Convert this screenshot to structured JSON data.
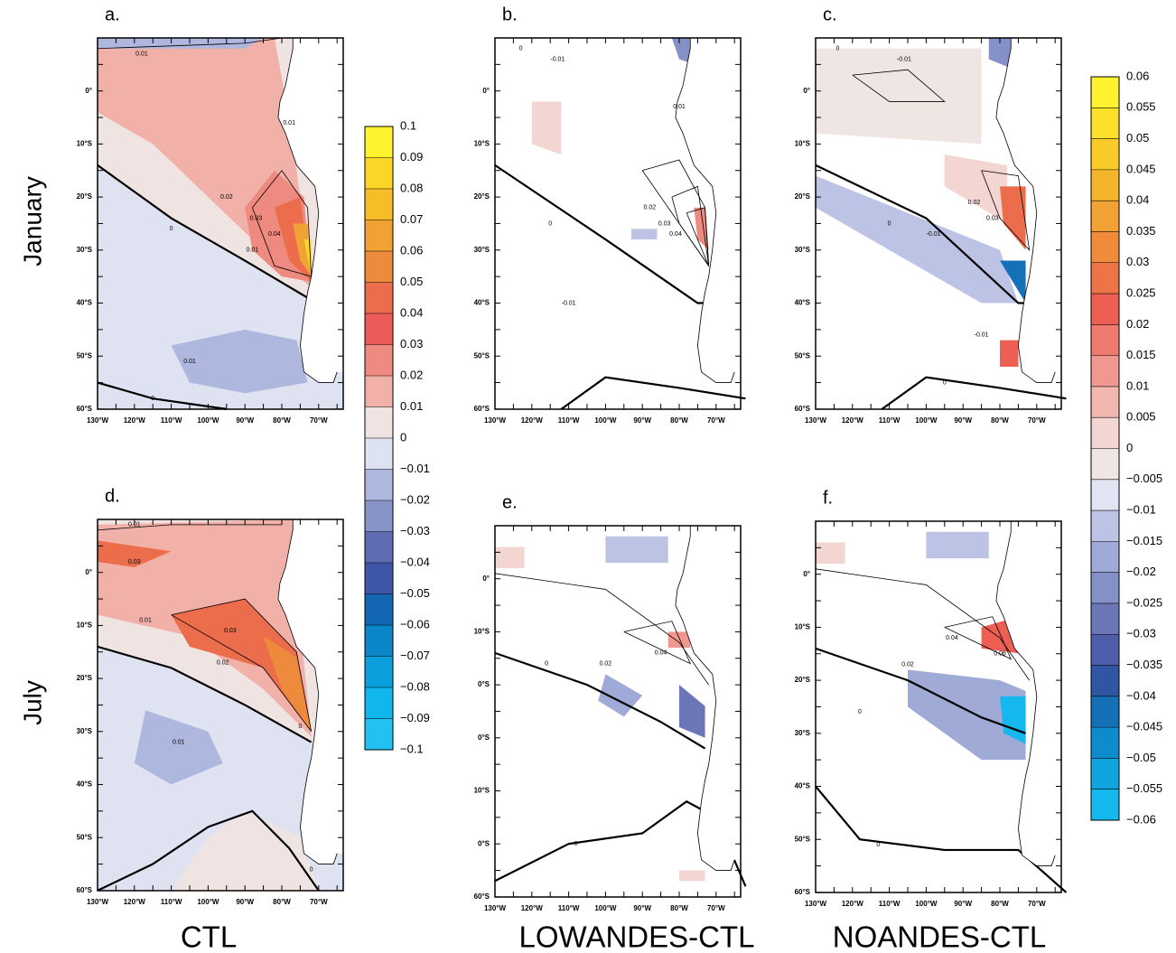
{
  "rows": [
    "January",
    "July"
  ],
  "columns": [
    "CTL",
    "LOWANDES-CTL",
    "NOANDES-CTL"
  ],
  "lon_ticks": [
    "130°W",
    "120°W",
    "110°W",
    "100°W",
    "90°W",
    "80°W",
    "70°W"
  ],
  "panels": [
    {
      "label": "a.",
      "lat_ticks": [
        "0°",
        "10°S",
        "20°S",
        "30°S",
        "40°S",
        "50°S",
        "60°S"
      ],
      "contours": [
        "0.01",
        "0.01",
        "0.02",
        "0.03",
        "0.04",
        "0",
        "0.01",
        "0.01",
        "0"
      ]
    },
    {
      "label": "b.",
      "lat_ticks": [
        "0°",
        "10°S",
        "20°S",
        "30°S",
        "40°S",
        "50°S",
        "60°S"
      ],
      "contours": [
        "0",
        "-0.01",
        "0.01",
        "0.02",
        "0.03",
        "0.04",
        "0",
        "-0.01"
      ]
    },
    {
      "label": "c.",
      "lat_ticks": [
        "0°",
        "10°S",
        "20°S",
        "30°S",
        "40°S",
        "50°S",
        "60°S"
      ],
      "contours": [
        "0",
        "-0.01",
        "0.02",
        "0.03",
        "0",
        "-0.01",
        "-0.01",
        "0"
      ]
    },
    {
      "label": "d.",
      "lat_ticks": [
        "0°",
        "10°S",
        "20°S",
        "30°S",
        "40°S",
        "50°S",
        "60°S"
      ],
      "contours": [
        "0.01",
        "0.03",
        "0.03",
        "0.01",
        "0.02",
        "0",
        "0.01",
        "0"
      ]
    },
    {
      "label": "e.",
      "lat_ticks": [
        "0°",
        "10°S",
        "0°S",
        "0°S",
        "10°S",
        "0°S",
        "60°S"
      ],
      "contours": [
        "0.04",
        "0.02",
        "0",
        "0"
      ]
    },
    {
      "label": "f.",
      "lat_ticks": [
        "0°",
        "10°S",
        "20°S",
        "30°S",
        "40°S",
        "50°S",
        "60°S"
      ],
      "contours": [
        "0.04",
        "0.02",
        "0.06",
        "0",
        "0"
      ]
    }
  ],
  "colorbars": [
    {
      "labels": [
        "0.1",
        "0.09",
        "0.08",
        "0.07",
        "0.06",
        "0.05",
        "0.04",
        "0.03",
        "0.02",
        "0.01",
        "0",
        "−0.01",
        "−0.02",
        "−0.03",
        "−0.04",
        "−0.05",
        "−0.06",
        "−0.07",
        "−0.08",
        "−0.09",
        "−0.1"
      ],
      "colors": [
        "#fff22e",
        "#fbd626",
        "#f6bd27",
        "#f0a235",
        "#ee8a3c",
        "#ec6d4b",
        "#ec5b58",
        "#ee8a80",
        "#f1b0a8",
        "#f0e4e2",
        "#dfe3f1",
        "#aeb8de",
        "#8893c8",
        "#5f6cb3",
        "#3f56a6",
        "#1266b2",
        "#0a86c9",
        "#0ba0dd",
        "#11b6ed",
        "#21c2f1"
      ]
    },
    {
      "labels": [
        "0.06",
        "0.055",
        "0.05",
        "0.045",
        "0.04",
        "0.035",
        "0.03",
        "0.025",
        "0.02",
        "0.015",
        "0.01",
        "0.005",
        "0",
        "−0.005",
        "−0.01",
        "−0.015",
        "−0.02",
        "−0.025",
        "−0.03",
        "−0.035",
        "−0.04",
        "−0.045",
        "−0.05",
        "−0.055",
        "−0.06"
      ],
      "colors": [
        "#fff22e",
        "#fde02a",
        "#f9cb28",
        "#f5b52b",
        "#f2a134",
        "#ef8b3b",
        "#ed7446",
        "#ec5f52",
        "#ee7a70",
        "#f0988f",
        "#f2b7b1",
        "#f3d6d1",
        "#efe6e4",
        "#e1e4f2",
        "#bcc3e5",
        "#a0aad6",
        "#8590c6",
        "#6a76b8",
        "#4e5eab",
        "#2f55a3",
        "#1570b7",
        "#0e8bcd",
        "#0fa3df",
        "#15b8ee"
      ]
    }
  ]
}
